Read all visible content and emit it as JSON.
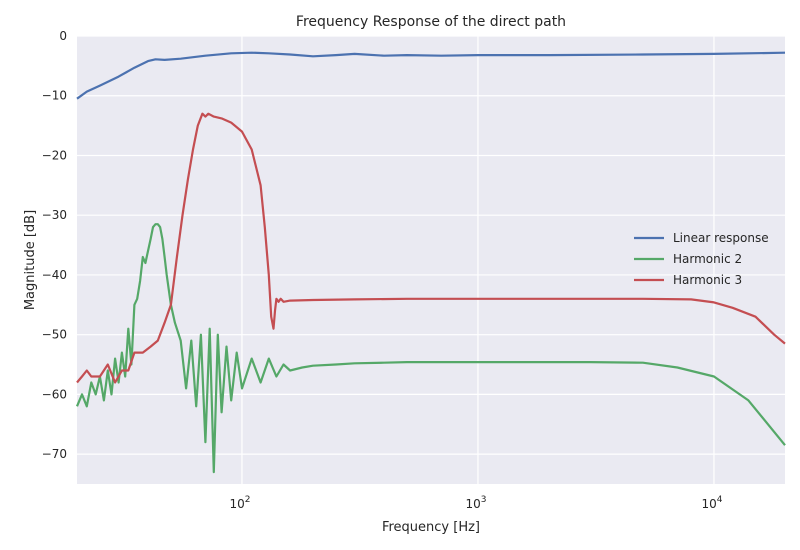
{
  "chart_data": {
    "type": "line",
    "title": "Frequency Response of the direct path",
    "xlabel": "Frequency [Hz]",
    "ylabel": "Magnitude [dB]",
    "xscale": "log",
    "xlim": [
      20,
      20000
    ],
    "ylim": [
      -75,
      0
    ],
    "yticks": [
      0,
      -10,
      -20,
      -30,
      -40,
      -50,
      -60,
      -70
    ],
    "ytick_labels": [
      "0",
      "−10",
      "−20",
      "−30",
      "−40",
      "−50",
      "−60",
      "−70"
    ],
    "xticks": [
      {
        "value": 100,
        "base": "10",
        "exp": "2"
      },
      {
        "value": 1000,
        "base": "10",
        "exp": "3"
      },
      {
        "value": 10000,
        "base": "10",
        "exp": "4"
      }
    ],
    "grid": true,
    "legend_position": "right",
    "series": [
      {
        "name": "Linear response",
        "color": "#4c72b0",
        "x": [
          20,
          22,
          25,
          30,
          35,
          40,
          43,
          47,
          55,
          70,
          90,
          110,
          130,
          160,
          200,
          250,
          300,
          400,
          500,
          700,
          1000,
          2000,
          5000,
          10000,
          20000
        ],
        "y": [
          -10.5,
          -9.3,
          -8.3,
          -6.8,
          -5.3,
          -4.2,
          -3.9,
          -4.0,
          -3.8,
          -3.3,
          -2.9,
          -2.8,
          -2.9,
          -3.1,
          -3.4,
          -3.2,
          -3.0,
          -3.3,
          -3.2,
          -3.3,
          -3.2,
          -3.2,
          -3.1,
          -3.0,
          -2.8
        ]
      },
      {
        "name": "Harmonic 2",
        "color": "#55a868",
        "x": [
          20,
          21,
          22,
          23,
          24,
          25,
          26,
          27,
          28,
          29,
          30,
          31,
          32,
          33,
          34,
          35,
          36,
          37,
          38,
          39,
          40,
          41,
          42,
          43,
          44,
          45,
          46,
          47,
          48,
          50,
          52,
          55,
          58,
          61,
          64,
          67,
          70,
          73,
          76,
          79,
          82,
          86,
          90,
          95,
          100,
          110,
          120,
          130,
          140,
          150,
          160,
          180,
          200,
          250,
          300,
          400,
          500,
          700,
          1000,
          2000,
          3000,
          5000,
          7000,
          10000,
          14000,
          20000
        ],
        "y": [
          -62,
          -60,
          -62,
          -58,
          -60,
          -57,
          -61,
          -56,
          -60,
          -54,
          -58,
          -53,
          -57,
          -49,
          -55,
          -45,
          -44,
          -41,
          -37,
          -38,
          -36,
          -34,
          -32,
          -31.5,
          -31.5,
          -32,
          -34,
          -37,
          -40,
          -45,
          -48,
          -51,
          -59,
          -51,
          -62,
          -50,
          -68,
          -49,
          -73,
          -50,
          -63,
          -52,
          -61,
          -53,
          -59,
          -54,
          -58,
          -54,
          -57,
          -55,
          -56,
          -55.5,
          -55.2,
          -55,
          -54.8,
          -54.7,
          -54.6,
          -54.6,
          -54.6,
          -54.6,
          -54.6,
          -54.7,
          -55.5,
          -57,
          -61,
          -68.5
        ]
      },
      {
        "name": "Harmonic 3",
        "color": "#c44e52",
        "x": [
          20,
          21,
          22,
          23,
          25,
          27,
          29,
          31,
          33,
          35,
          38,
          41,
          44,
          47,
          50,
          53,
          56,
          59,
          62,
          65,
          68,
          70,
          72,
          76,
          82,
          90,
          100,
          110,
          120,
          125,
          130,
          133,
          136,
          138,
          140,
          143,
          146,
          150,
          160,
          200,
          300,
          500,
          1000,
          2000,
          5000,
          8000,
          10000,
          12000,
          15000,
          18000,
          20000
        ],
        "y": [
          -58,
          -57,
          -56,
          -57,
          -57,
          -55,
          -58,
          -56,
          -56,
          -53,
          -53,
          -52,
          -51,
          -48,
          -45,
          -37,
          -30,
          -24,
          -19,
          -15,
          -13,
          -13.5,
          -13,
          -13.5,
          -13.8,
          -14.5,
          -16,
          -19,
          -25,
          -32,
          -40,
          -47,
          -49,
          -46,
          -44,
          -44.5,
          -44,
          -44.5,
          -44.3,
          -44.2,
          -44.1,
          -44.0,
          -44.0,
          -44.0,
          -44.0,
          -44.1,
          -44.6,
          -45.5,
          -47,
          -50,
          -51.5
        ]
      }
    ]
  }
}
